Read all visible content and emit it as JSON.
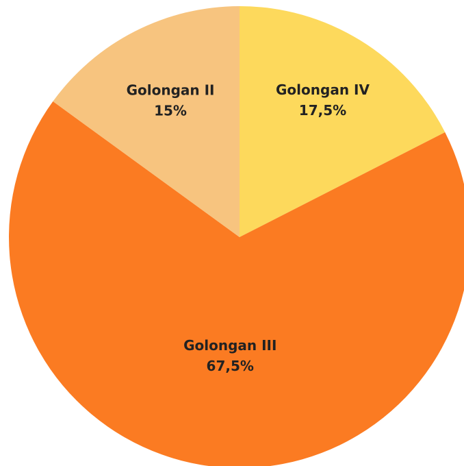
{
  "chart_data": {
    "type": "pie",
    "categories": [
      "Golongan IV",
      "Golongan III",
      "Golongan II"
    ],
    "values": [
      17.5,
      67.5,
      15
    ],
    "value_labels": [
      "17,5%",
      "67,5%",
      "15%"
    ],
    "colors": [
      "#fdd95c",
      "#fb7b22",
      "#f7c47f"
    ]
  }
}
